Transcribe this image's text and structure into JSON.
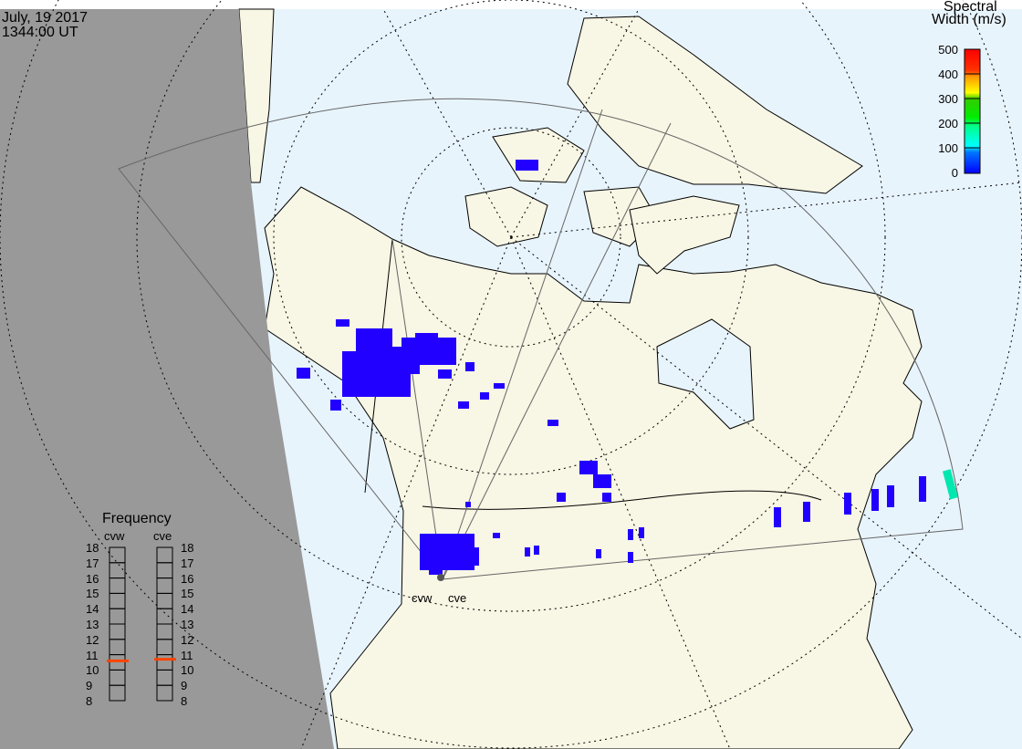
{
  "header": {
    "date": "July, 19 2017",
    "time": "1344:00 UT"
  },
  "colorbar": {
    "title_line1": "Spectral",
    "title_line2": "Width (m/s)",
    "ticks": [
      "500",
      "400",
      "300",
      "200",
      "100",
      "0"
    ],
    "range": [
      0,
      500
    ],
    "colors": [
      "#ff0000",
      "#ff8800",
      "#ffff00",
      "#00dd00",
      "#00ffcc",
      "#00ffff",
      "#0066ff",
      "#0000ff"
    ]
  },
  "frequency": {
    "title": "Frequency",
    "unit_range": [
      8,
      18
    ],
    "ticks": [
      "18",
      "17",
      "16",
      "15",
      "14",
      "13",
      "12",
      "11",
      "10",
      "9",
      "8"
    ],
    "radars": [
      {
        "name": "cvw",
        "value_mhz": 10.6
      },
      {
        "name": "cve",
        "value_mhz": 10.7
      }
    ],
    "marker_color": "#ff4400"
  },
  "map": {
    "radar_labels": [
      "cvw",
      "cve"
    ],
    "colors": {
      "night": "#999999",
      "ocean": "#e8f4fc",
      "land": "#f8f6e4",
      "data": "#2200ff"
    }
  }
}
